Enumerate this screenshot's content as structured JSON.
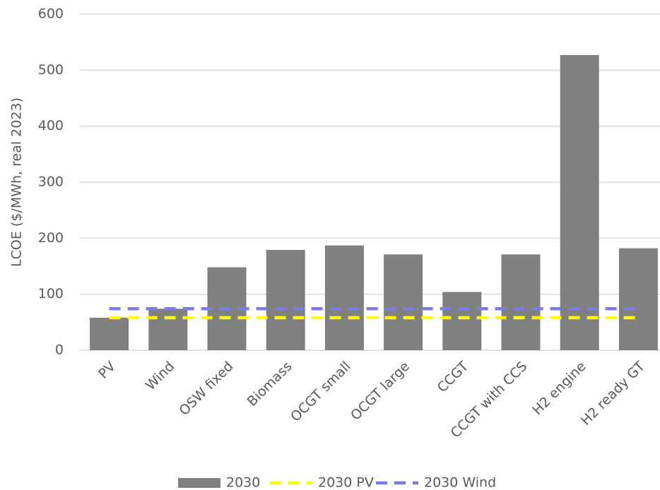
{
  "chart_data": {
    "type": "bar",
    "y_label": "LCOE ($/MWh, real 2023)",
    "categories": [
      "PV",
      "Wind",
      "OSW fixed",
      "Biomass",
      "OCGT small",
      "OCGT large",
      "CCGT",
      "CCGT with CCS",
      "H2 engine",
      "H2 ready GT"
    ],
    "series": [
      {
        "name": "2030",
        "type": "bar",
        "color": "#808080",
        "values": [
          58,
          74,
          148,
          179,
          187,
          171,
          104,
          171,
          527,
          182
        ]
      },
      {
        "name": "2030 PV",
        "type": "line",
        "line_style": "dashed",
        "color": "#ffff00",
        "values": [
          58,
          58,
          58,
          58,
          58,
          58,
          58,
          58,
          58,
          58
        ]
      },
      {
        "name": "2030 Wind",
        "type": "line",
        "line_style": "dashed",
        "color": "#7b7be8",
        "values": [
          74,
          74,
          74,
          74,
          74,
          74,
          74,
          74,
          74,
          74
        ]
      }
    ],
    "ylim": [
      0,
      600
    ],
    "yticks": [
      0,
      100,
      200,
      300,
      400,
      500,
      600
    ],
    "grid": true,
    "legend": "bottom"
  }
}
